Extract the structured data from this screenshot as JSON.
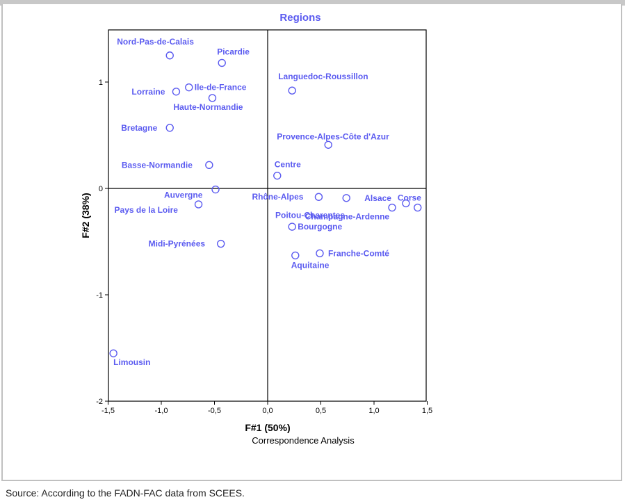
{
  "chart_data": {
    "type": "scatter",
    "title": "Regions",
    "xlabel": "F#1 (50%)",
    "ylabel": "F#2 (38%)",
    "subtitle": "Correspondence Analysis",
    "xlim": [
      -1.5,
      1.5
    ],
    "ylim": [
      -2,
      1.5
    ],
    "xticks": [
      "-1,5",
      "-1,0",
      "-0,5",
      "0,0",
      "0,5",
      "1,0",
      "1,5"
    ],
    "yticks": [
      "1",
      "0",
      "-1",
      "-2"
    ],
    "grid": false,
    "point_color": "#5b5bf0",
    "points": [
      {
        "name": "Nord-Pas-de-Calais",
        "x": -0.92,
        "y": 1.25
      },
      {
        "name": "Picardie",
        "x": -0.43,
        "y": 1.18
      },
      {
        "name": "Ile-de-France",
        "x": -0.74,
        "y": 0.95
      },
      {
        "name": "Lorraine",
        "x": -0.86,
        "y": 0.91
      },
      {
        "name": "Haute-Normandie",
        "x": -0.52,
        "y": 0.85
      },
      {
        "name": "Bretagne",
        "x": -0.92,
        "y": 0.57
      },
      {
        "name": "Basse-Normandie",
        "x": -0.55,
        "y": 0.22
      },
      {
        "name": "Auvergne",
        "x": -0.49,
        "y": -0.01
      },
      {
        "name": "Pays de la Loire",
        "x": -0.65,
        "y": -0.15
      },
      {
        "name": "Midi-Pyrénées",
        "x": -0.44,
        "y": -0.52
      },
      {
        "name": "Limousin",
        "x": -1.45,
        "y": -1.55
      },
      {
        "name": "Languedoc-Roussillon",
        "x": 0.23,
        "y": 0.92
      },
      {
        "name": "Provence-Alpes-Côte d'Azur",
        "x": 0.57,
        "y": 0.41
      },
      {
        "name": "Centre",
        "x": 0.09,
        "y": 0.12
      },
      {
        "name": "Rhône-Alpes",
        "x": 0.48,
        "y": -0.08
      },
      {
        "name": "Alsace",
        "x": 0.74,
        "y": -0.09
      },
      {
        "name": "Corse",
        "x": 1.3,
        "y": -0.14
      },
      {
        "name": "Poitou-Charentes",
        "x": 1.17,
        "y": -0.18
      },
      {
        "name": "Champagne-Ardenne",
        "x": 1.41,
        "y": -0.18
      },
      {
        "name": "Bourgogne",
        "x": 0.23,
        "y": -0.36
      },
      {
        "name": "Franche-Comté",
        "x": 0.49,
        "y": -0.61
      },
      {
        "name": "Aquitaine",
        "x": 0.26,
        "y": -0.63
      }
    ]
  },
  "footer": {
    "source": "Source: According to the FADN-FAC data from SCEES."
  }
}
